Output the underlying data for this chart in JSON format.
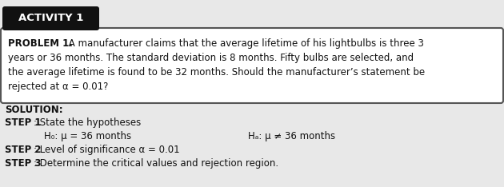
{
  "activity_label": "ACTIVITY 1",
  "problem_bold": "PROBLEM 1.",
  "problem_line1_rest": " A manufacturer claims that the average lifetime of his lightbulbs is three 3",
  "problem_line2": "years or 36 months. The standard deviation is 8 months. Fifty bulbs are selected, and",
  "problem_line3": "the average lifetime is found to be 32 months. Should the manufacturer’s statement be",
  "problem_line4": "rejected at α = 0.01?",
  "solution_label": "SOLUTION:",
  "step1_bold": "STEP 1",
  "step1_rest": ": State the hypotheses",
  "h0_text": "H₀: μ = 36 months",
  "ha_text": "Hₐ: μ ≠ 36 months",
  "step2_bold": "STEP 2",
  "step2_rest": ": Level of significance α = 0.01",
  "step3_bold": "STEP 3",
  "step3_rest": ": Determine the critical values and rejection region.",
  "bg_color": "#e8e8e8",
  "box_bg": "#ffffff",
  "activity_bg": "#111111",
  "activity_fg": "#ffffff",
  "text_color": "#111111",
  "font_size": 8.5,
  "badge_font_size": 9.5
}
